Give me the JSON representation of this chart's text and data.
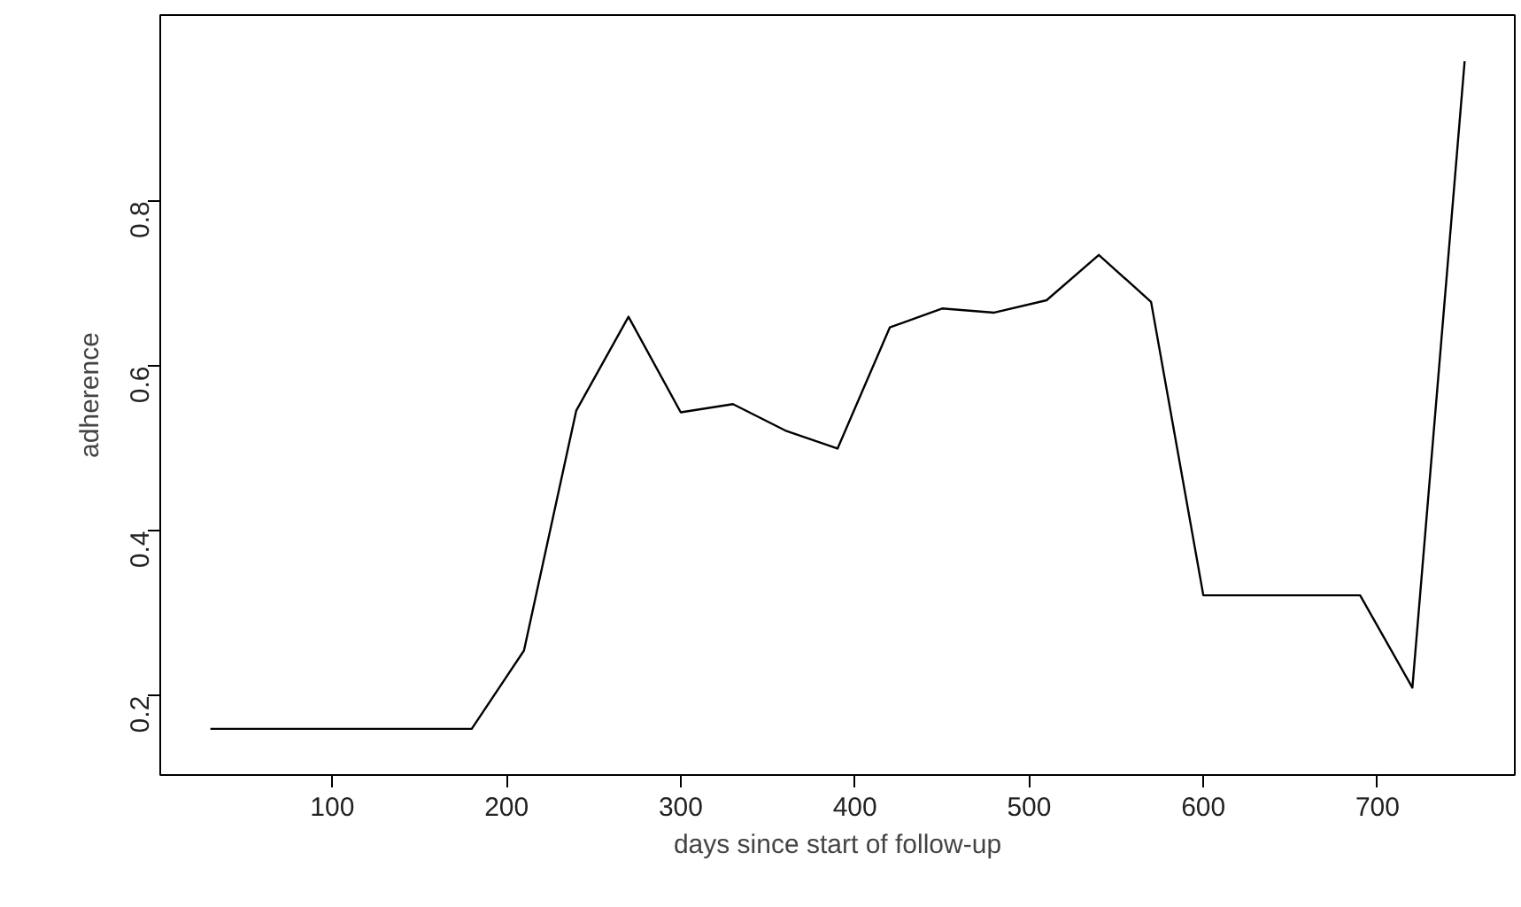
{
  "chart_data": {
    "type": "line",
    "xlabel": "days since start of follow-up",
    "ylabel": "adherence",
    "x": [
      30,
      60,
      90,
      120,
      150,
      180,
      210,
      240,
      270,
      300,
      330,
      360,
      390,
      420,
      450,
      480,
      510,
      540,
      570,
      600,
      630,
      660,
      690,
      720,
      750
    ],
    "series": [
      {
        "color": "#000000",
        "values": [
          0.16,
          0.16,
          0.16,
          0.16,
          0.16,
          0.16,
          0.255,
          0.546,
          0.66,
          0.544,
          0.554,
          0.522,
          0.5,
          0.647,
          0.67,
          0.665,
          0.68,
          0.735,
          0.678,
          0.322,
          0.322,
          0.322,
          0.322,
          0.21,
          0.97
        ]
      }
    ],
    "xlim": [
      1.2,
      778.8
    ],
    "ylim": [
      0.104,
      1.026
    ],
    "xticks": [
      100,
      200,
      300,
      400,
      500,
      600,
      700
    ],
    "yticks": [
      0.2,
      0.4,
      0.6,
      0.8
    ],
    "grid": false
  }
}
